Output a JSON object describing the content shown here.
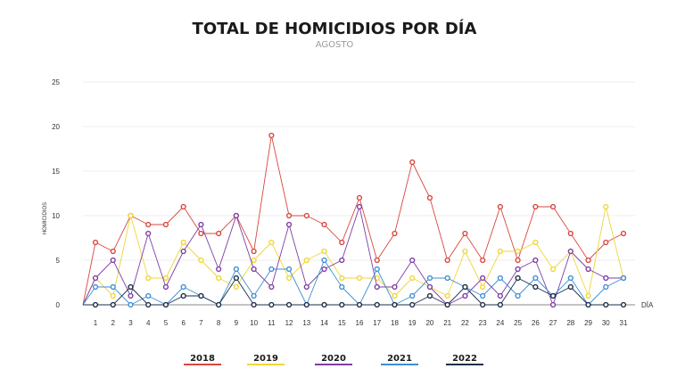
{
  "chart_data": {
    "type": "line",
    "title": "TOTAL DE HOMICIDIOS POR DÍA",
    "subtitle": "AGOSTO",
    "ylabel": "HOMICIDIOS",
    "xlabel": "DÍA",
    "ylim": [
      0,
      25
    ],
    "yticks": [
      0,
      5,
      10,
      15,
      20,
      25
    ],
    "grid": true,
    "legend_position": "bottom",
    "x": [
      1,
      2,
      3,
      4,
      5,
      6,
      7,
      8,
      9,
      10,
      11,
      12,
      13,
      14,
      15,
      16,
      17,
      18,
      19,
      20,
      21,
      22,
      23,
      24,
      25,
      26,
      27,
      28,
      29,
      30,
      31
    ],
    "series": [
      {
        "name": "2018",
        "color": "#d9473f",
        "values": [
          7,
          6,
          10,
          9,
          9,
          11,
          8,
          8,
          10,
          6,
          19,
          10,
          10,
          9,
          7,
          12,
          5,
          8,
          16,
          12,
          5,
          8,
          5,
          11,
          5,
          11,
          11,
          8,
          5,
          7,
          8
        ]
      },
      {
        "name": "2019",
        "color": "#efd639",
        "values": [
          3,
          1,
          10,
          3,
          3,
          7,
          5,
          3,
          2,
          5,
          7,
          3,
          5,
          6,
          3,
          3,
          3,
          1,
          3,
          2,
          1,
          6,
          2,
          6,
          6,
          7,
          4,
          6,
          1,
          11,
          3
        ]
      },
      {
        "name": "2020",
        "color": "#7e3da5",
        "values": [
          3,
          5,
          1,
          8,
          2,
          6,
          9,
          4,
          10,
          4,
          2,
          9,
          2,
          4,
          5,
          11,
          2,
          2,
          5,
          2,
          0,
          1,
          3,
          1,
          4,
          5,
          0,
          6,
          4,
          3,
          3
        ]
      },
      {
        "name": "2021",
        "color": "#3d8fd6",
        "values": [
          2,
          2,
          0,
          1,
          0,
          2,
          1,
          0,
          4,
          1,
          4,
          4,
          0,
          5,
          2,
          0,
          4,
          0,
          1,
          3,
          3,
          2,
          1,
          3,
          1,
          3,
          1,
          3,
          0,
          2,
          3
        ]
      },
      {
        "name": "2022",
        "color": "#1c2e4a",
        "values": [
          0,
          0,
          2,
          0,
          0,
          1,
          1,
          0,
          3,
          0,
          0,
          0,
          0,
          0,
          0,
          0,
          0,
          0,
          0,
          1,
          0,
          2,
          0,
          0,
          3,
          2,
          1,
          2,
          0,
          0,
          0
        ]
      }
    ]
  }
}
